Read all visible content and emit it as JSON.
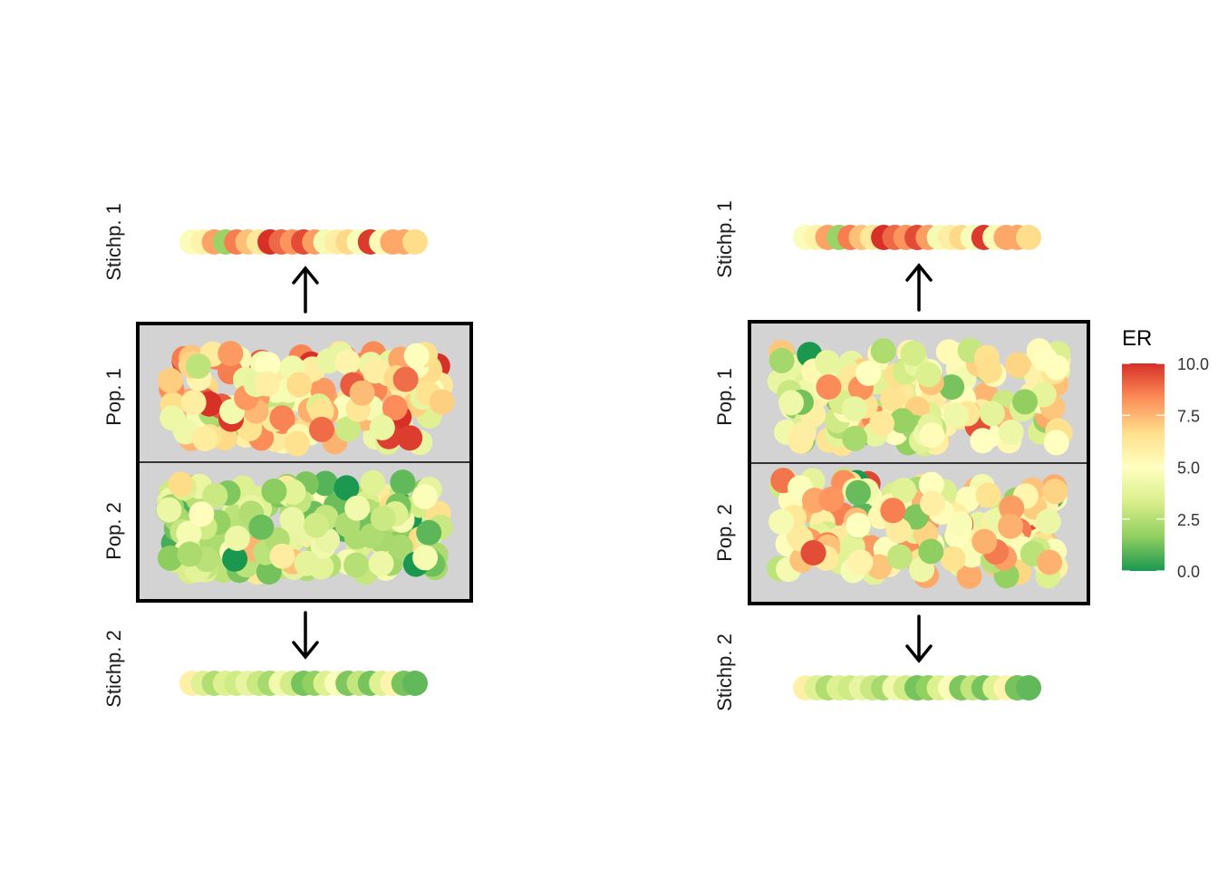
{
  "chart_data": [
    {
      "type": "scatter",
      "panel": "left",
      "labels": {
        "sample1": "Stichp. 1",
        "population1": "Pop. 1",
        "population2": "Pop. 2",
        "sample2": "Stichp. 2"
      },
      "sample1_values": [
        4.8,
        5.7,
        7.9,
        1.9,
        8.6,
        7.3,
        6.2,
        10.0,
        9.0,
        8.2,
        9.5,
        8.0,
        4.6,
        5.9,
        6.8,
        4.8,
        9.8,
        5.3,
        7.8,
        7.8,
        6.7
      ],
      "sample2_values": [
        5.8,
        3.6,
        2.4,
        3.5,
        3.1,
        4.0,
        3.0,
        2.2,
        4.4,
        3.2,
        1.3,
        1.7,
        3.5,
        4.8,
        1.4,
        2.8,
        1.3,
        3.6,
        5.6,
        1.3,
        1.0
      ]
    },
    {
      "type": "scatter",
      "panel": "right",
      "labels": {
        "sample1": "Stichp. 1",
        "population1": "Pop. 1",
        "population2": "Pop. 2",
        "sample2": "Stichp. 2"
      },
      "sample1_values": [
        4.8,
        5.7,
        7.9,
        1.9,
        8.6,
        7.3,
        6.2,
        10.0,
        9.0,
        8.2,
        9.5,
        8.0,
        4.6,
        5.9,
        6.8,
        4.8,
        9.8,
        5.3,
        7.8,
        7.8,
        6.7
      ],
      "sample2_values": [
        5.8,
        3.6,
        2.4,
        3.5,
        3.1,
        4.0,
        3.0,
        2.2,
        4.4,
        3.2,
        1.3,
        1.7,
        3.5,
        4.8,
        1.4,
        2.8,
        1.3,
        3.6,
        5.6,
        1.3,
        1.0
      ]
    }
  ],
  "legend": {
    "title": "ER",
    "ticks": [
      "0.0",
      "2.5",
      "5.0",
      "7.5",
      "10.0"
    ],
    "tick_values": [
      0,
      2.5,
      5,
      7.5,
      10
    ],
    "range": [
      0,
      10
    ],
    "colors": [
      "#1a9850",
      "#91cf60",
      "#d9ef8b",
      "#ffffbf",
      "#fee08b",
      "#fc8d59",
      "#d73027"
    ]
  },
  "colors": {
    "population_fill": "#d3d3d3",
    "frame": "#000000"
  }
}
